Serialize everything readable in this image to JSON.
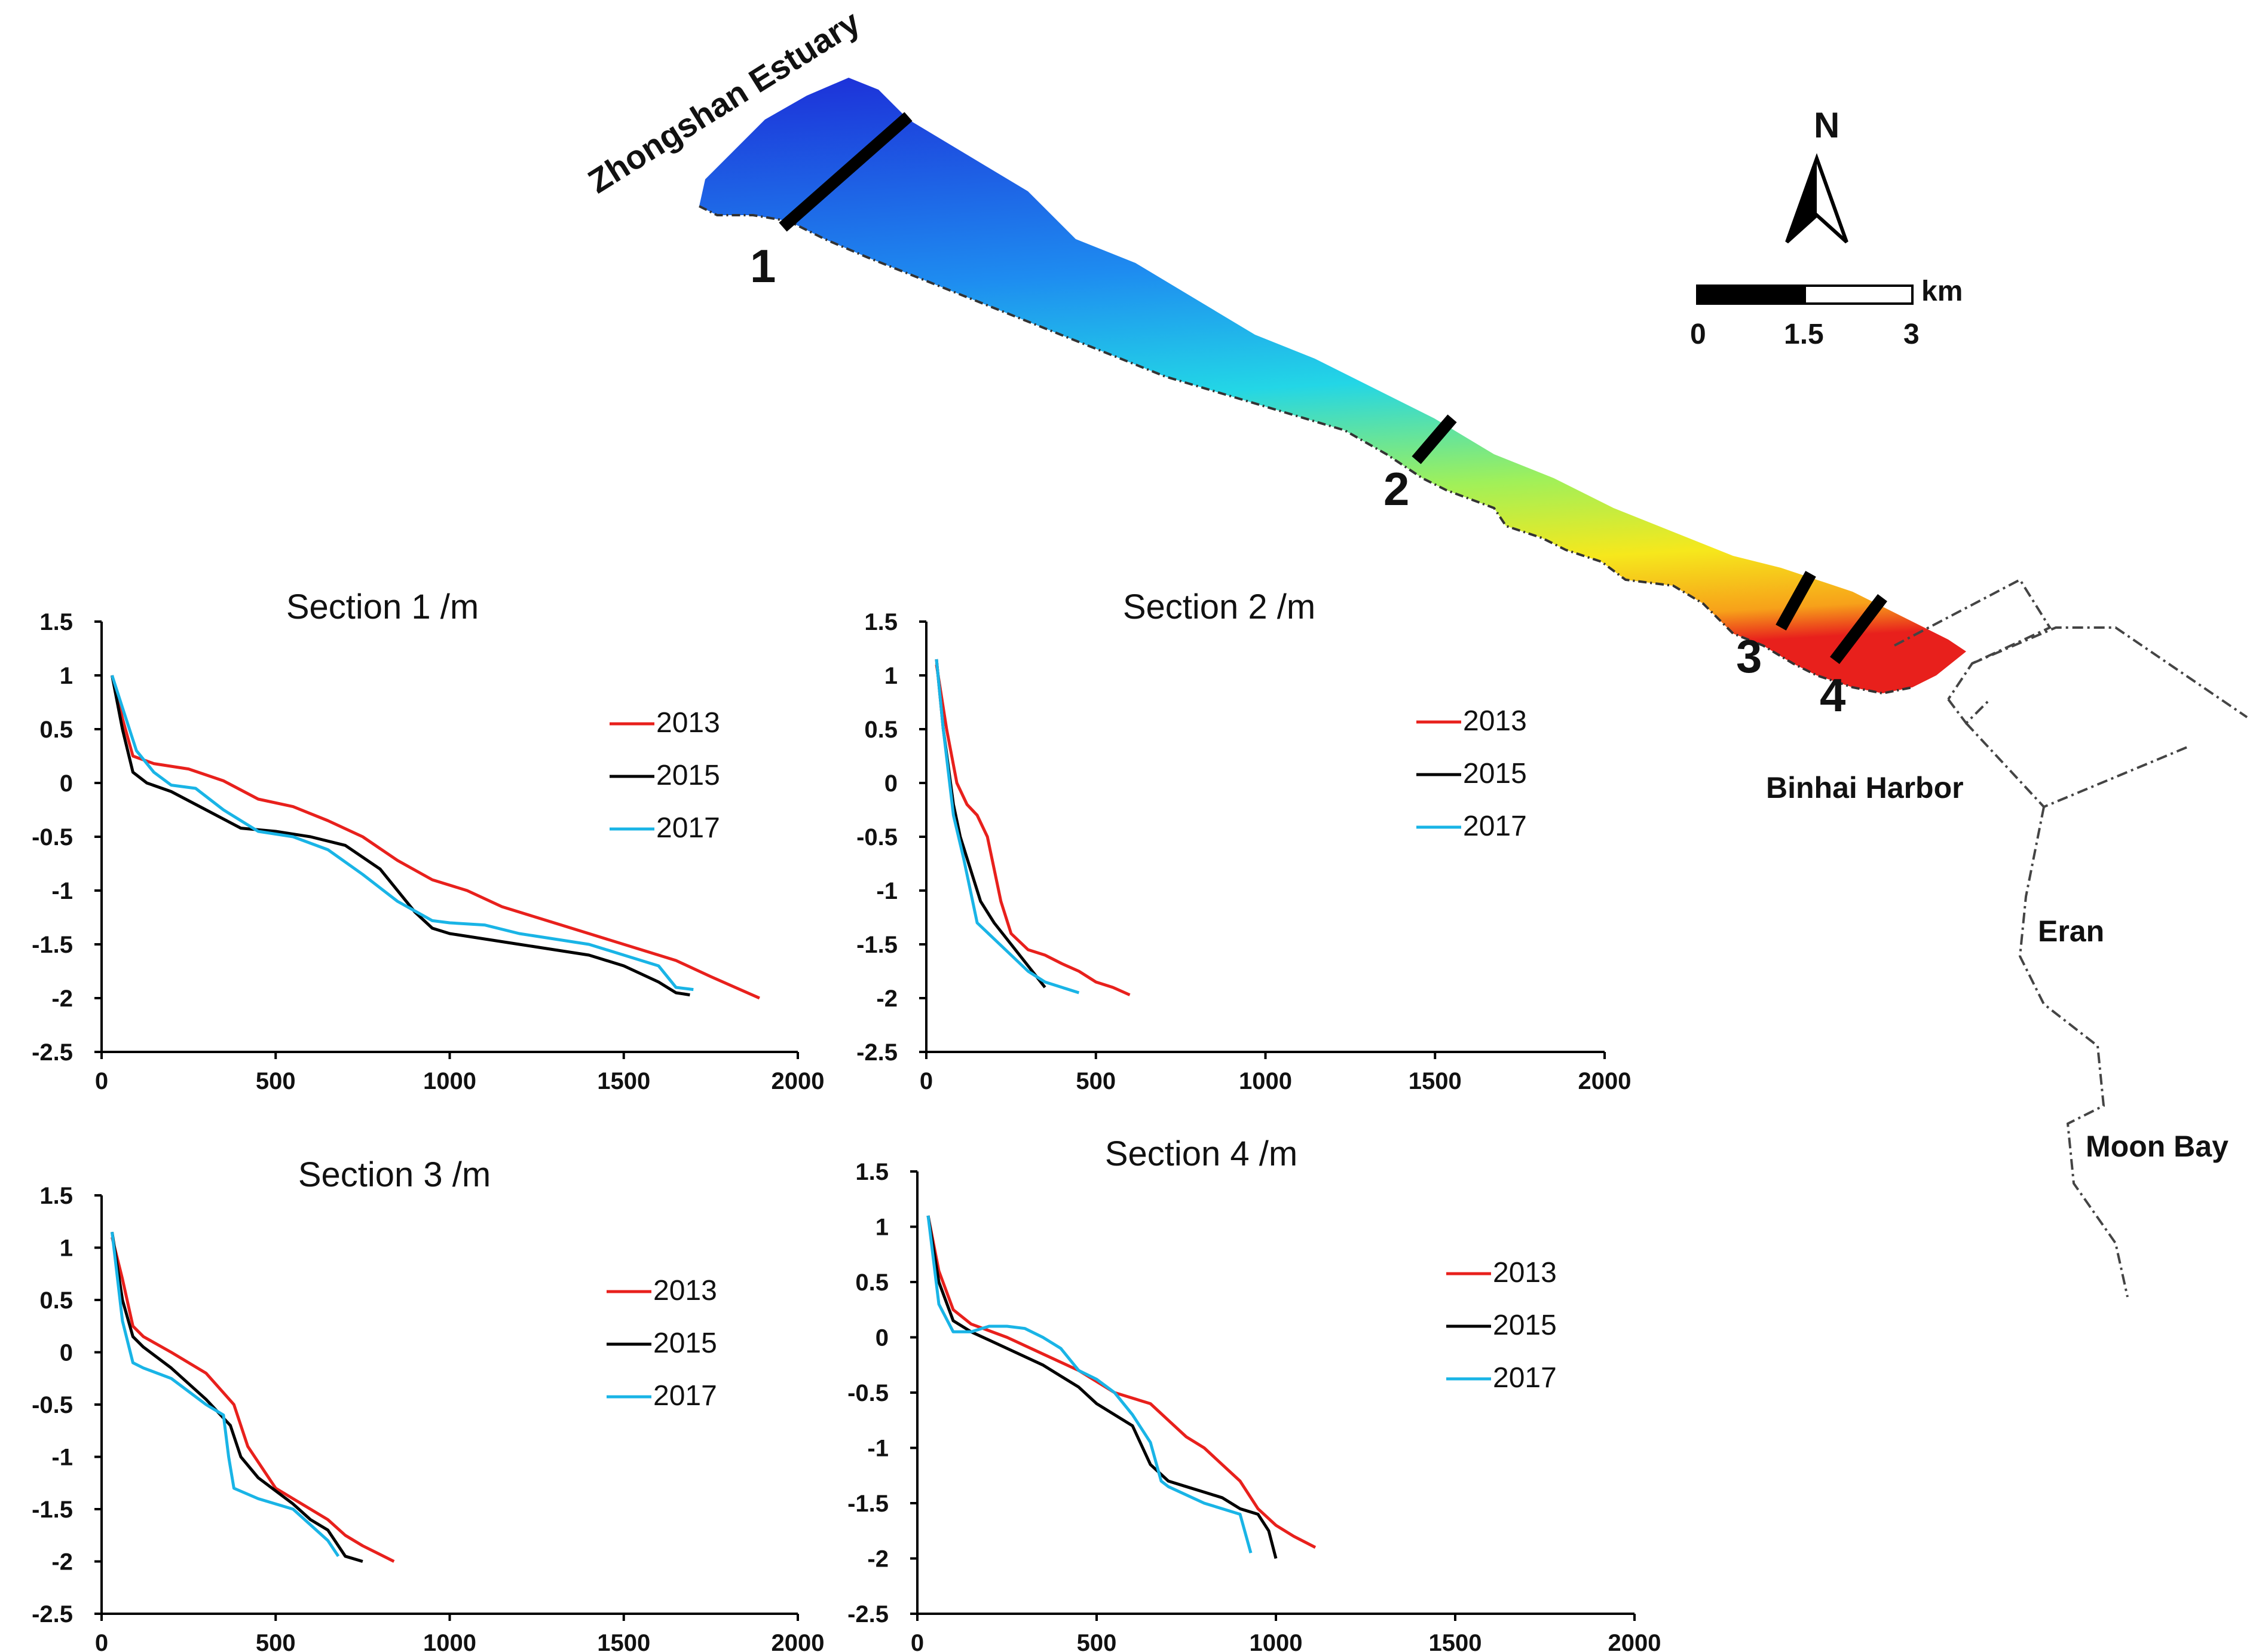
{
  "map": {
    "estuary_label": "Zhongshan Estuary",
    "section_labels": [
      "1",
      "2",
      "3",
      "4"
    ],
    "north_label": "N",
    "scale_unit": "km",
    "scale_ticks": [
      "0",
      "1.5",
      "3"
    ],
    "place_labels": {
      "binhai": "Binhai Harbor",
      "eran": "Eran",
      "moon_bay": "Moon Bay"
    }
  },
  "colors": {
    "2013": "#e8201c",
    "2015": "#000000",
    "2017": "#19b4e6"
  },
  "chart_data": [
    {
      "type": "line",
      "title": "Section 1 /m",
      "xlim": [
        0,
        2000
      ],
      "ylim": [
        -2.5,
        1.5
      ],
      "xticks": [
        0,
        500,
        1000,
        1500,
        2000
      ],
      "yticks": [
        -2.5,
        -2,
        -1.5,
        -1,
        -0.5,
        0,
        0.5,
        1,
        1.5
      ],
      "series": [
        {
          "name": "2013",
          "x": [
            30,
            60,
            90,
            150,
            250,
            350,
            450,
            550,
            650,
            750,
            850,
            950,
            1050,
            1150,
            1250,
            1350,
            1450,
            1550,
            1650,
            1750,
            1890
          ],
          "y": [
            1.0,
            0.6,
            0.25,
            0.18,
            0.13,
            0.02,
            -0.15,
            -0.22,
            -0.35,
            -0.5,
            -0.72,
            -0.9,
            -1.0,
            -1.15,
            -1.25,
            -1.35,
            -1.45,
            -1.55,
            -1.65,
            -1.8,
            -2.0
          ]
        },
        {
          "name": "2015",
          "x": [
            30,
            60,
            90,
            130,
            200,
            300,
            400,
            500,
            600,
            700,
            800,
            900,
            950,
            1000,
            1100,
            1200,
            1300,
            1400,
            1500,
            1600,
            1650,
            1690
          ],
          "y": [
            1.0,
            0.5,
            0.1,
            0.0,
            -0.08,
            -0.25,
            -0.42,
            -0.45,
            -0.5,
            -0.58,
            -0.8,
            -1.2,
            -1.35,
            -1.4,
            -1.45,
            -1.5,
            -1.55,
            -1.6,
            -1.7,
            -1.85,
            -1.95,
            -1.97
          ]
        },
        {
          "name": "2017",
          "x": [
            30,
            60,
            100,
            150,
            200,
            270,
            350,
            450,
            550,
            650,
            750,
            850,
            950,
            1000,
            1100,
            1200,
            1300,
            1400,
            1500,
            1600,
            1650,
            1700
          ],
          "y": [
            1.0,
            0.7,
            0.3,
            0.1,
            -0.02,
            -0.05,
            -0.25,
            -0.45,
            -0.5,
            -0.62,
            -0.85,
            -1.1,
            -1.28,
            -1.3,
            -1.32,
            -1.4,
            -1.45,
            -1.5,
            -1.6,
            -1.7,
            -1.9,
            -1.92
          ]
        }
      ]
    },
    {
      "type": "line",
      "title": "Section 2 /m",
      "xlim": [
        0,
        2000
      ],
      "ylim": [
        -2.5,
        1.5
      ],
      "xticks": [
        0,
        500,
        1000,
        1500,
        2000
      ],
      "yticks": [
        -2.5,
        -2,
        -1.5,
        -1,
        -0.5,
        0,
        0.5,
        1,
        1.5
      ],
      "series": [
        {
          "name": "2013",
          "x": [
            30,
            60,
            90,
            120,
            150,
            180,
            200,
            220,
            250,
            300,
            350,
            400,
            450,
            500,
            550,
            600
          ],
          "y": [
            1.1,
            0.5,
            0.0,
            -0.2,
            -0.3,
            -0.5,
            -0.8,
            -1.1,
            -1.4,
            -1.55,
            -1.6,
            -1.68,
            -1.75,
            -1.85,
            -1.9,
            -1.97
          ]
        },
        {
          "name": "2015",
          "x": [
            30,
            50,
            80,
            100,
            130,
            160,
            200,
            250,
            300,
            350
          ],
          "y": [
            1.15,
            0.5,
            -0.2,
            -0.5,
            -0.8,
            -1.1,
            -1.3,
            -1.5,
            -1.7,
            -1.9
          ]
        },
        {
          "name": "2017",
          "x": [
            30,
            50,
            80,
            110,
            150,
            200,
            250,
            300,
            350,
            400,
            450
          ],
          "y": [
            1.15,
            0.5,
            -0.3,
            -0.7,
            -1.3,
            -1.45,
            -1.6,
            -1.75,
            -1.85,
            -1.9,
            -1.95
          ]
        }
      ]
    },
    {
      "type": "line",
      "title": "Section 3 /m",
      "xlim": [
        0,
        2000
      ],
      "ylim": [
        -2.5,
        1.5
      ],
      "xticks": [
        0,
        500,
        1000,
        1500,
        2000
      ],
      "yticks": [
        -2.5,
        -2,
        -1.5,
        -1,
        -0.5,
        0,
        0.5,
        1,
        1.5
      ],
      "series": [
        {
          "name": "2013",
          "x": [
            30,
            60,
            90,
            120,
            200,
            300,
            380,
            420,
            500,
            550,
            600,
            650,
            700,
            750,
            840
          ],
          "y": [
            1.1,
            0.7,
            0.25,
            0.15,
            0.0,
            -0.2,
            -0.5,
            -0.9,
            -1.3,
            -1.4,
            -1.5,
            -1.6,
            -1.75,
            -1.85,
            -2.0
          ]
        },
        {
          "name": "2015",
          "x": [
            30,
            60,
            90,
            120,
            200,
            300,
            370,
            400,
            450,
            550,
            600,
            650,
            680,
            700,
            750
          ],
          "y": [
            1.15,
            0.5,
            0.15,
            0.05,
            -0.15,
            -0.45,
            -0.7,
            -1.0,
            -1.2,
            -1.45,
            -1.6,
            -1.7,
            -1.85,
            -1.95,
            -2.0
          ]
        },
        {
          "name": "2017",
          "x": [
            30,
            60,
            90,
            120,
            200,
            300,
            350,
            365,
            380,
            450,
            550,
            650,
            680
          ],
          "y": [
            1.15,
            0.3,
            -0.1,
            -0.15,
            -0.25,
            -0.5,
            -0.6,
            -1.0,
            -1.3,
            -1.4,
            -1.5,
            -1.8,
            -1.95
          ]
        }
      ]
    },
    {
      "type": "line",
      "title": "Section 4 /m",
      "xlim": [
        0,
        2000
      ],
      "ylim": [
        -2.5,
        1.5
      ],
      "xticks": [
        0,
        500,
        1000,
        1500,
        2000
      ],
      "yticks": [
        -2.5,
        -2,
        -1.5,
        -1,
        -0.5,
        0,
        0.5,
        1,
        1.5
      ],
      "series": [
        {
          "name": "2013",
          "x": [
            30,
            60,
            100,
            150,
            250,
            350,
            450,
            550,
            650,
            700,
            750,
            800,
            850,
            900,
            950,
            1000,
            1050,
            1110
          ],
          "y": [
            1.1,
            0.6,
            0.25,
            0.12,
            0.0,
            -0.15,
            -0.3,
            -0.5,
            -0.6,
            -0.75,
            -0.9,
            -1.0,
            -1.15,
            -1.3,
            -1.55,
            -1.7,
            -1.8,
            -1.9
          ]
        },
        {
          "name": "2015",
          "x": [
            30,
            60,
            100,
            150,
            250,
            350,
            450,
            500,
            550,
            600,
            650,
            700,
            750,
            800,
            850,
            900,
            950,
            980,
            1000
          ],
          "y": [
            1.1,
            0.5,
            0.15,
            0.05,
            -0.1,
            -0.25,
            -0.45,
            -0.6,
            -0.7,
            -0.8,
            -1.15,
            -1.3,
            -1.35,
            -1.4,
            -1.45,
            -1.55,
            -1.6,
            -1.75,
            -2.0
          ]
        },
        {
          "name": "2017",
          "x": [
            30,
            60,
            100,
            150,
            200,
            250,
            300,
            350,
            400,
            450,
            500,
            550,
            600,
            650,
            680,
            700,
            800,
            900,
            930
          ],
          "y": [
            1.1,
            0.3,
            0.05,
            0.05,
            0.1,
            0.1,
            0.08,
            0.0,
            -0.1,
            -0.3,
            -0.38,
            -0.5,
            -0.7,
            -0.95,
            -1.3,
            -1.35,
            -1.5,
            -1.6,
            -1.95
          ]
        }
      ]
    }
  ]
}
